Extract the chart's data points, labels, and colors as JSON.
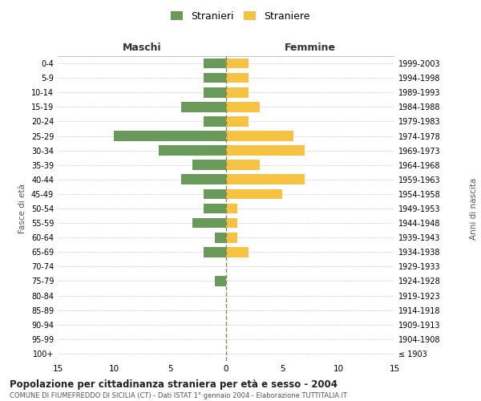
{
  "age_groups": [
    "100+",
    "95-99",
    "90-94",
    "85-89",
    "80-84",
    "75-79",
    "70-74",
    "65-69",
    "60-64",
    "55-59",
    "50-54",
    "45-49",
    "40-44",
    "35-39",
    "30-34",
    "25-29",
    "20-24",
    "15-19",
    "10-14",
    "5-9",
    "0-4"
  ],
  "birth_years": [
    "≤ 1903",
    "1904-1908",
    "1909-1913",
    "1914-1918",
    "1919-1923",
    "1924-1928",
    "1929-1933",
    "1934-1938",
    "1939-1943",
    "1944-1948",
    "1949-1953",
    "1954-1958",
    "1959-1963",
    "1964-1968",
    "1969-1973",
    "1974-1978",
    "1979-1983",
    "1984-1988",
    "1989-1993",
    "1994-1998",
    "1999-2003"
  ],
  "maschi": [
    0,
    0,
    0,
    0,
    0,
    1,
    0,
    2,
    1,
    3,
    2,
    2,
    4,
    3,
    6,
    10,
    2,
    4,
    2,
    2,
    2
  ],
  "femmine": [
    0,
    0,
    0,
    0,
    0,
    0,
    0,
    2,
    1,
    1,
    1,
    5,
    7,
    3,
    7,
    6,
    2,
    3,
    2,
    2,
    2
  ],
  "maschi_color": "#6a9a5a",
  "femmine_color": "#f5c242",
  "title": "Popolazione per cittadinanza straniera per età e sesso - 2004",
  "subtitle": "COMUNE DI FIUMEFREDDO DI SICILIA (CT) - Dati ISTAT 1° gennaio 2004 - Elaborazione TUTTITALIA.IT",
  "xlabel_left": "Maschi",
  "xlabel_right": "Femmine",
  "ylabel_left": "Fasce di età",
  "ylabel_right": "Anni di nascita",
  "legend_maschi": "Stranieri",
  "legend_femmine": "Straniere",
  "xlim": 15,
  "background_color": "#ffffff",
  "grid_color": "#cccccc",
  "bar_height": 0.7
}
